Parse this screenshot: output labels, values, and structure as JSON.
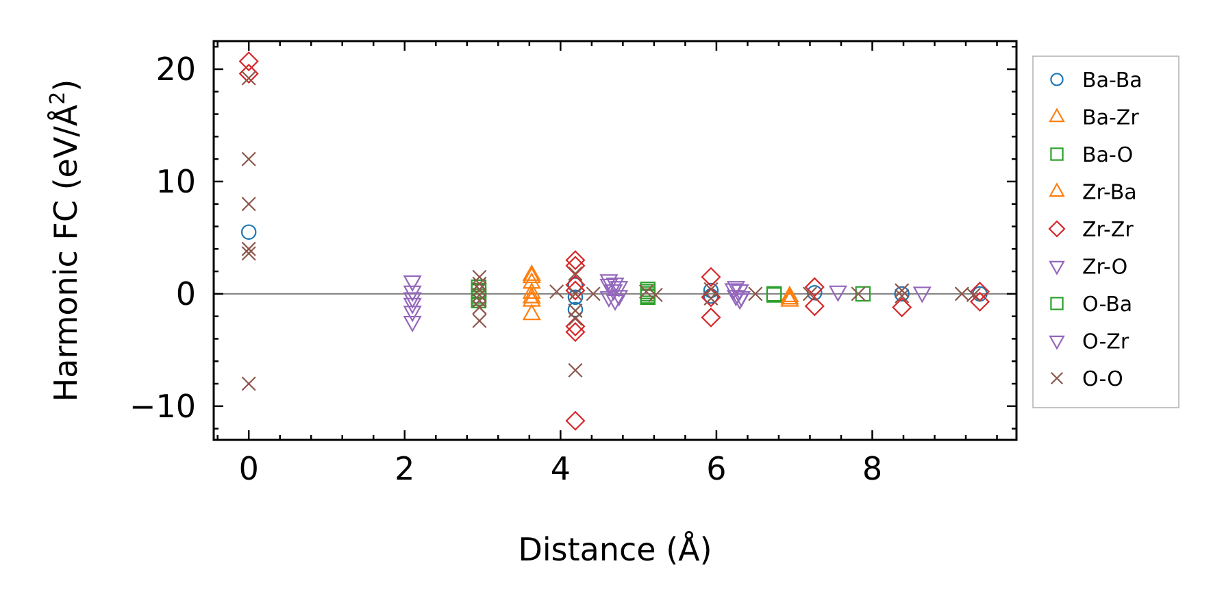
{
  "chart_data": {
    "type": "scatter",
    "xlabel": "Distance (Å)",
    "ylabel_main": "Harmonic FC (eV/Å",
    "ylabel_sup": "2",
    "ylabel_end": ")",
    "xlim": [
      -0.45,
      9.85
    ],
    "ylim": [
      -13,
      22.5
    ],
    "xticks": [
      0,
      2,
      4,
      6,
      8
    ],
    "yticks": [
      -10,
      0,
      10,
      20
    ],
    "xtick_labels": [
      "0",
      "2",
      "4",
      "6",
      "8"
    ],
    "ytick_labels": [
      "−10",
      "0",
      "10",
      "20"
    ],
    "zero_line": true,
    "legend_position": "outside-right",
    "series": [
      {
        "name": "Ba-Ba",
        "marker": "circle",
        "color": "#1f77b4",
        "points": [
          [
            0,
            5.5
          ],
          [
            4.19,
            0.8
          ],
          [
            4.19,
            -0.3
          ],
          [
            4.19,
            -1.4
          ],
          [
            5.93,
            0.3
          ],
          [
            5.93,
            -0.2
          ],
          [
            7.26,
            0.1
          ],
          [
            8.38,
            0.0
          ],
          [
            9.38,
            0.0
          ]
        ]
      },
      {
        "name": "Ba-Zr",
        "marker": "triangle-up",
        "color": "#ff7f0e",
        "points": [
          [
            3.63,
            1.7
          ],
          [
            3.63,
            1.0
          ],
          [
            3.63,
            0.1
          ],
          [
            3.63,
            -0.6
          ],
          [
            3.63,
            -1.8
          ],
          [
            6.94,
            -0.2
          ],
          [
            6.94,
            -0.6
          ]
        ]
      },
      {
        "name": "Ba-O",
        "marker": "square",
        "color": "#2ca02c",
        "points": [
          [
            2.95,
            0.6
          ],
          [
            2.95,
            0.2
          ],
          [
            2.95,
            -0.2
          ],
          [
            2.95,
            -0.6
          ],
          [
            5.12,
            0.4
          ],
          [
            5.12,
            0.0
          ],
          [
            5.12,
            -0.3
          ],
          [
            6.74,
            0.0
          ],
          [
            7.88,
            0.0
          ]
        ]
      },
      {
        "name": "Zr-Ba",
        "marker": "triangle-up",
        "color": "#ff7f0e",
        "points": [
          [
            3.63,
            1.5
          ],
          [
            3.63,
            -0.3
          ],
          [
            6.94,
            -0.4
          ]
        ]
      },
      {
        "name": "Zr-Zr",
        "marker": "diamond",
        "color": "#d62728",
        "points": [
          [
            0,
            20.7
          ],
          [
            0,
            19.6
          ],
          [
            4.19,
            3.0
          ],
          [
            4.19,
            2.5
          ],
          [
            4.19,
            0.8
          ],
          [
            4.19,
            0.3
          ],
          [
            4.19,
            -2.9
          ],
          [
            4.19,
            -3.4
          ],
          [
            4.19,
            -11.3
          ],
          [
            5.93,
            1.5
          ],
          [
            5.93,
            -0.3
          ],
          [
            5.93,
            -2.1
          ],
          [
            7.26,
            0.6
          ],
          [
            7.26,
            -1.1
          ],
          [
            8.38,
            -1.2
          ],
          [
            9.38,
            0.2
          ],
          [
            9.38,
            -0.7
          ]
        ]
      },
      {
        "name": "Zr-O",
        "marker": "triangle-down",
        "color": "#9467bd",
        "points": [
          [
            2.1,
            1.1
          ],
          [
            2.1,
            0.2
          ],
          [
            2.1,
            -0.9
          ],
          [
            2.1,
            -1.6
          ],
          [
            2.1,
            -2.5
          ],
          [
            4.62,
            1.2
          ],
          [
            4.7,
            0.9
          ],
          [
            4.75,
            0.6
          ],
          [
            4.62,
            -0.3
          ],
          [
            4.7,
            -0.6
          ],
          [
            6.25,
            0.6
          ],
          [
            6.3,
            0.3
          ],
          [
            6.25,
            -0.2
          ],
          [
            6.3,
            -0.5
          ],
          [
            7.56,
            0.2
          ],
          [
            8.64,
            0.1
          ]
        ]
      },
      {
        "name": "O-Ba",
        "marker": "square",
        "color": "#2ca02c",
        "points": [
          [
            2.95,
            0.3
          ],
          [
            2.95,
            -0.4
          ],
          [
            5.12,
            0.2
          ],
          [
            5.12,
            -0.2
          ],
          [
            6.74,
            -0.1
          ]
        ]
      },
      {
        "name": "O-Zr",
        "marker": "triangle-down",
        "color": "#9467bd",
        "points": [
          [
            2.1,
            -0.4
          ],
          [
            4.62,
            0.8
          ],
          [
            4.68,
            0.3
          ],
          [
            4.75,
            -0.2
          ],
          [
            6.22,
            0.4
          ],
          [
            6.32,
            -0.3
          ]
        ]
      },
      {
        "name": "O-O",
        "marker": "x",
        "color": "#8c564b",
        "points": [
          [
            0,
            19.2
          ],
          [
            0,
            12.0
          ],
          [
            0,
            8.0
          ],
          [
            0,
            4.0
          ],
          [
            0,
            3.6
          ],
          [
            0,
            -8.0
          ],
          [
            2.96,
            1.5
          ],
          [
            2.96,
            0.9
          ],
          [
            2.96,
            0.4
          ],
          [
            2.96,
            -0.1
          ],
          [
            2.96,
            -0.6
          ],
          [
            2.96,
            -1.2
          ],
          [
            2.96,
            -2.4
          ],
          [
            3.95,
            0.2
          ],
          [
            4.19,
            1.8
          ],
          [
            4.19,
            0.0
          ],
          [
            4.19,
            -1.5
          ],
          [
            4.19,
            -2.2
          ],
          [
            4.19,
            -6.8
          ],
          [
            4.42,
            0.0
          ],
          [
            5.1,
            0.2
          ],
          [
            5.22,
            -0.1
          ],
          [
            5.93,
            0.4
          ],
          [
            5.93,
            -0.4
          ],
          [
            6.5,
            0.0
          ],
          [
            7.2,
            0.0
          ],
          [
            7.82,
            0.0
          ],
          [
            8.38,
            0.3
          ],
          [
            8.38,
            -0.2
          ],
          [
            9.15,
            0.0
          ],
          [
            9.3,
            -0.1
          ]
        ]
      }
    ]
  }
}
